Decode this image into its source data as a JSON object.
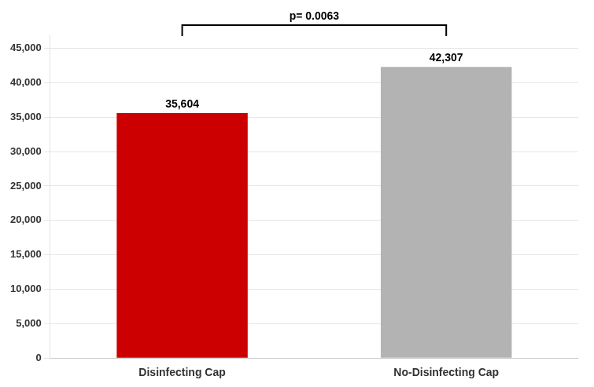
{
  "chart_data": {
    "type": "bar",
    "categories": [
      "Disinfecting Cap",
      "No-Disinfecting Cap"
    ],
    "values": [
      35604,
      42307
    ],
    "colors": [
      "#cc0000",
      "#b3b3b3"
    ],
    "value_labels": [
      "35,604",
      "42,307"
    ],
    "data_labels": true,
    "annotation": "p= 0.0063",
    "ylim": [
      0,
      47000
    ],
    "yticks": [
      0,
      {
        "value": 5000,
        "label": "5,000"
      },
      {
        "value": 10000,
        "label": "10,000"
      },
      {
        "value": 15000,
        "label": "15,000"
      },
      {
        "value": 20000,
        "label": "20,000"
      },
      {
        "value": 25000,
        "label": "25,000"
      },
      {
        "value": 30000,
        "label": "30,000"
      },
      {
        "value": 35000,
        "label": "35,000"
      },
      {
        "value": 40000,
        "label": "40,000"
      },
      {
        "value": 45000,
        "label": "45,000"
      }
    ],
    "grid": true
  }
}
